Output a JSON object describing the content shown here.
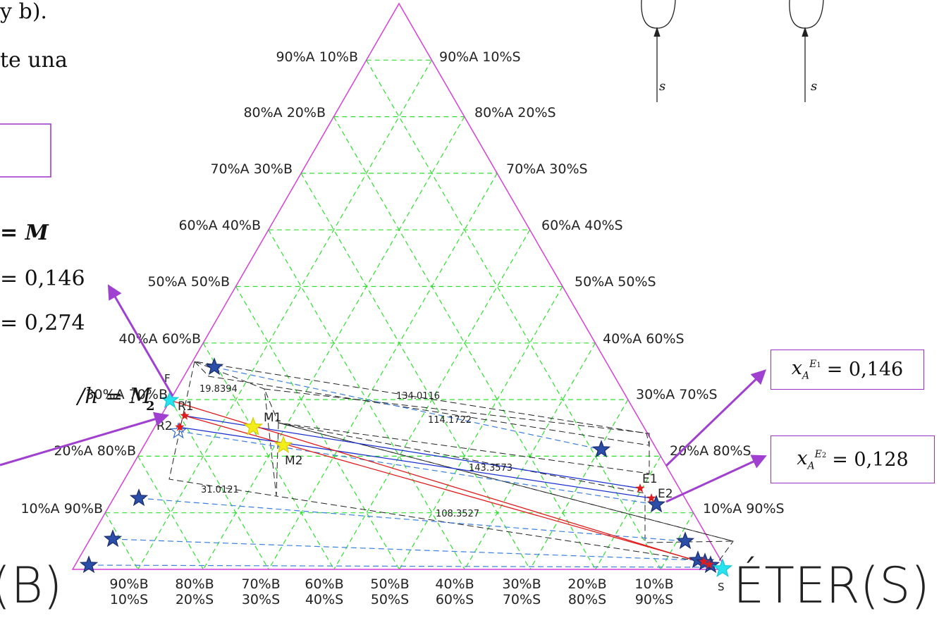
{
  "slide_text": {
    "top_left": "y b).",
    "line2": "te una",
    "eq1": "= M",
    "eq2": "= 0,146",
    "eq3": "= 0,274",
    "eq4": "/h = M",
    "eq4_sub": "2"
  },
  "mixer_labels": {
    "left": "s",
    "right": "s"
  },
  "left_labels": [
    "90%A  10%B",
    "80%A  20%B",
    "70%A  30%B",
    "60%A  40%B",
    "50%A  50%B",
    "40%A  60%B",
    "30%A  70%B",
    "20%A  80%B",
    "10%A  90%B"
  ],
  "right_labels": [
    "90%A  10%S",
    "80%A  20%S",
    "70%A  30%S",
    "60%A  40%S",
    "50%A  50%S",
    "40%A  60%S",
    "30%A  70%S",
    "20%A  80%S",
    "10%A  90%S"
  ],
  "bottom_labels": [
    [
      "90%B",
      "10%S"
    ],
    [
      "80%B",
      "20%S"
    ],
    [
      "70%B",
      "30%S"
    ],
    [
      "60%B",
      "40%S"
    ],
    [
      "50%B",
      "50%S"
    ],
    [
      "40%B",
      "60%S"
    ],
    [
      "30%B",
      "70%S"
    ],
    [
      "20%B",
      "80%S"
    ],
    [
      "10%B",
      "90%S"
    ]
  ],
  "corner_labels": {
    "left": "(B)",
    "right": "ÉTER(S)"
  },
  "point_labels": {
    "R1": "R1",
    "R2": "R2",
    "M1": "M1",
    "M2": "M2",
    "E1": "E1",
    "E2": "E2",
    "F": "F",
    "S": "S"
  },
  "dimensions": [
    "19.8394",
    "134.0116",
    "114.1722",
    "143.3573",
    "31.0121",
    "108.3527"
  ],
  "result_boxes": [
    {
      "var": "x",
      "sub": "A",
      "sup": "E",
      "sup_sub": "1",
      "value": "= 0,146"
    },
    {
      "var": "x",
      "sub": "A",
      "sup": "E",
      "sup_sub": "2",
      "value": "= 0,128"
    }
  ],
  "colors": {
    "triangle": "#d63fd6",
    "grid": "#2ee02e",
    "operating_line": "#e01b1b",
    "tie_line": "#1a2fd1",
    "tie_dashed": "#3b7fe0",
    "dimension": "#222222",
    "arrow": "#a040d0",
    "star_blue": "#2b4fa8",
    "star_yellow": "#f2ee1a",
    "star_cyan": "#27e3ef"
  }
}
